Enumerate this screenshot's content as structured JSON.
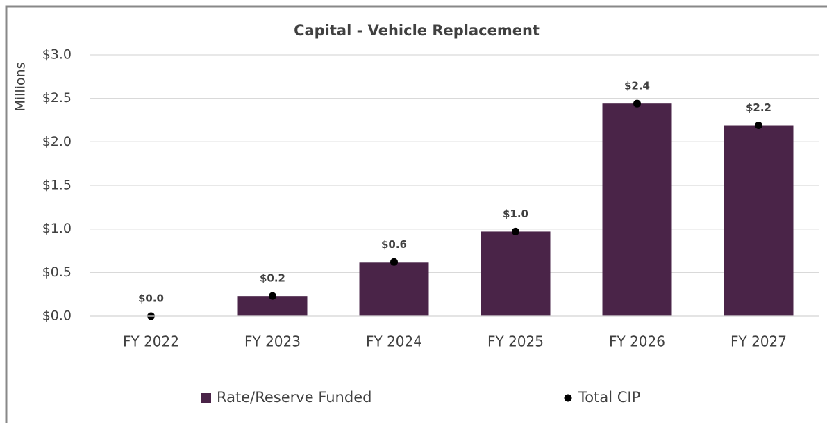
{
  "chart_data": {
    "type": "bar",
    "title": "Capital - Vehicle Replacement",
    "y_label": "Millions",
    "categories": [
      "FY 2022",
      "FY 2023",
      "FY 2024",
      "FY 2025",
      "FY 2026",
      "FY 2027"
    ],
    "series": [
      {
        "name": "Rate/Reserve Funded",
        "type": "bar",
        "color": "#4a2448",
        "values": [
          0,
          0.23,
          0.62,
          0.97,
          2.44,
          2.19
        ]
      },
      {
        "name": "Total CIP",
        "type": "scatter",
        "color": "#000000",
        "values": [
          0,
          0.23,
          0.62,
          0.97,
          2.44,
          2.19
        ],
        "value_labels": [
          "$0.0",
          "$0.2",
          "$0.6",
          "$1.0",
          "$2.4",
          "$2.2"
        ]
      }
    ],
    "ylim": [
      0,
      3
    ],
    "yticks": [
      {
        "value": 0,
        "label": "$0.0"
      },
      {
        "value": 0.5,
        "label": "$0.5"
      },
      {
        "value": 1,
        "label": "$1.0"
      },
      {
        "value": 1.5,
        "label": "$1.5"
      },
      {
        "value": 2,
        "label": "$2.0"
      },
      {
        "value": 2.5,
        "label": "$2.5"
      },
      {
        "value": 3,
        "label": "$3.0"
      }
    ],
    "grid": true,
    "legend": "bottom"
  }
}
